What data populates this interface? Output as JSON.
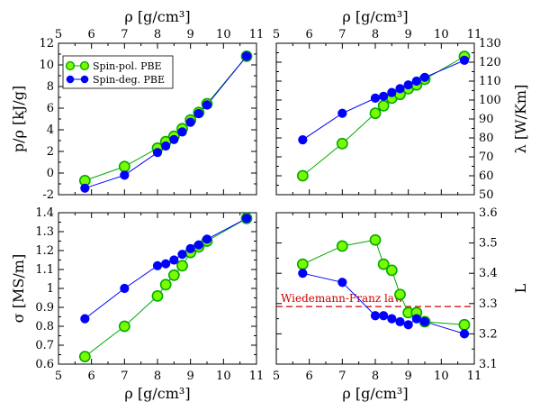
{
  "chart_data": [
    {
      "type": "line",
      "panel": "top-left",
      "xlabel": "ρ [g/cm³]",
      "xlabel_position": "top",
      "ylabel": "p/ρ [kJ/g]",
      "ylabel_position": "left",
      "xlim": [
        5,
        11
      ],
      "ylim": [
        -2,
        12
      ],
      "xticks": [
        5,
        6,
        7,
        8,
        9,
        10,
        11
      ],
      "yticks": [
        -2,
        0,
        2,
        4,
        6,
        8,
        10,
        12
      ],
      "legend": {
        "placement": "top-left",
        "entries": [
          "Spin-pol. PBE",
          "Spin-deg. PBE"
        ]
      },
      "series": [
        {
          "name": "Spin-pol. PBE",
          "color": "#00aa00",
          "marker_fill": "#7cfc00",
          "marker": "large-circle",
          "x": [
            5.8,
            7.0,
            8.0,
            8.25,
            8.5,
            8.75,
            9.0,
            9.25,
            9.5,
            10.7
          ],
          "y": [
            -0.7,
            0.6,
            2.3,
            2.9,
            3.4,
            4.1,
            4.9,
            5.6,
            6.4,
            10.8
          ]
        },
        {
          "name": "Spin-deg. PBE",
          "color": "#0000ff",
          "marker_fill": "#0000ff",
          "marker": "small-circle",
          "x": [
            5.8,
            7.0,
            8.0,
            8.25,
            8.5,
            8.75,
            9.0,
            9.25,
            9.5,
            10.7
          ],
          "y": [
            -1.4,
            -0.2,
            1.9,
            2.5,
            3.1,
            3.8,
            4.7,
            5.5,
            6.3,
            10.8
          ]
        }
      ]
    },
    {
      "type": "line",
      "panel": "top-right",
      "xlabel": "ρ [g/cm³]",
      "xlabel_position": "top",
      "ylabel": "λ [W/Km]",
      "ylabel_position": "right",
      "xlim": [
        5,
        11
      ],
      "ylim": [
        50,
        130
      ],
      "xticks": [
        5,
        6,
        7,
        8,
        9,
        10,
        11
      ],
      "yticks": [
        50,
        60,
        70,
        80,
        90,
        100,
        110,
        120,
        130
      ],
      "series": [
        {
          "name": "Spin-pol. PBE",
          "color": "#00aa00",
          "marker_fill": "#7cfc00",
          "marker": "large-circle",
          "x": [
            5.8,
            7.0,
            8.0,
            8.25,
            8.5,
            8.75,
            9.0,
            9.25,
            9.5,
            10.7
          ],
          "y": [
            60,
            77,
            93,
            97,
            101,
            103,
            106,
            108,
            111,
            123
          ]
        },
        {
          "name": "Spin-deg. PBE",
          "color": "#0000ff",
          "marker_fill": "#0000ff",
          "marker": "small-circle",
          "x": [
            5.8,
            7.0,
            8.0,
            8.25,
            8.5,
            8.75,
            9.0,
            9.25,
            9.5,
            10.7
          ],
          "y": [
            79,
            93,
            101,
            102,
            104,
            106,
            108,
            110,
            112,
            121
          ]
        }
      ]
    },
    {
      "type": "line",
      "panel": "bottom-left",
      "xlabel": "ρ [g/cm³]",
      "xlabel_position": "bottom",
      "ylabel": "σ [MS/m]",
      "ylabel_position": "left",
      "xlim": [
        5,
        11
      ],
      "ylim": [
        0.6,
        1.4
      ],
      "xticks": [
        5,
        6,
        7,
        8,
        9,
        10,
        11
      ],
      "yticks": [
        0.6,
        0.7,
        0.8,
        0.9,
        1.0,
        1.1,
        1.2,
        1.3,
        1.4
      ],
      "ytick_labels": [
        "0.6",
        "0.7",
        "0.8",
        "0.9",
        "1",
        "1.1",
        "1.2",
        "1.3",
        "1.4"
      ],
      "series": [
        {
          "name": "Spin-pol. PBE",
          "color": "#00aa00",
          "marker_fill": "#7cfc00",
          "marker": "large-circle",
          "x": [
            5.8,
            7.0,
            8.0,
            8.25,
            8.5,
            8.75,
            9.0,
            9.25,
            9.5,
            10.7
          ],
          "y": [
            0.64,
            0.8,
            0.96,
            1.02,
            1.07,
            1.12,
            1.19,
            1.22,
            1.25,
            1.37
          ]
        },
        {
          "name": "Spin-deg. PBE",
          "color": "#0000ff",
          "marker_fill": "#0000ff",
          "marker": "small-circle",
          "x": [
            5.8,
            7.0,
            8.0,
            8.25,
            8.5,
            8.75,
            9.0,
            9.25,
            9.5,
            10.7
          ],
          "y": [
            0.84,
            1.0,
            1.12,
            1.13,
            1.15,
            1.18,
            1.21,
            1.23,
            1.26,
            1.37
          ]
        }
      ]
    },
    {
      "type": "line",
      "panel": "bottom-right",
      "xlabel": "ρ [g/cm³]",
      "xlabel_position": "bottom",
      "ylabel": "L",
      "ylabel_position": "right",
      "xlim": [
        5,
        11
      ],
      "ylim": [
        3.1,
        3.6
      ],
      "xticks": [
        5,
        6,
        7,
        8,
        9,
        10,
        11
      ],
      "yticks": [
        3.1,
        3.2,
        3.3,
        3.4,
        3.5,
        3.6
      ],
      "reference_line": {
        "y": 3.29,
        "label": "Wiedemann-Franz law",
        "color": "#cc0000",
        "style": "dashed"
      },
      "series": [
        {
          "name": "Spin-pol. PBE",
          "color": "#00aa00",
          "marker_fill": "#7cfc00",
          "marker": "large-circle",
          "x": [
            5.8,
            7.0,
            8.0,
            8.25,
            8.5,
            8.75,
            9.0,
            9.25,
            9.5,
            10.7
          ],
          "y": [
            3.43,
            3.49,
            3.51,
            3.43,
            3.41,
            3.33,
            3.27,
            3.27,
            3.24,
            3.23
          ]
        },
        {
          "name": "Spin-deg. PBE",
          "color": "#0000ff",
          "marker_fill": "#0000ff",
          "marker": "small-circle",
          "x": [
            5.8,
            7.0,
            8.0,
            8.25,
            8.5,
            8.75,
            9.0,
            9.25,
            9.5,
            10.7
          ],
          "y": [
            3.4,
            3.37,
            3.26,
            3.26,
            3.25,
            3.24,
            3.23,
            3.25,
            3.24,
            3.2
          ]
        }
      ]
    }
  ]
}
